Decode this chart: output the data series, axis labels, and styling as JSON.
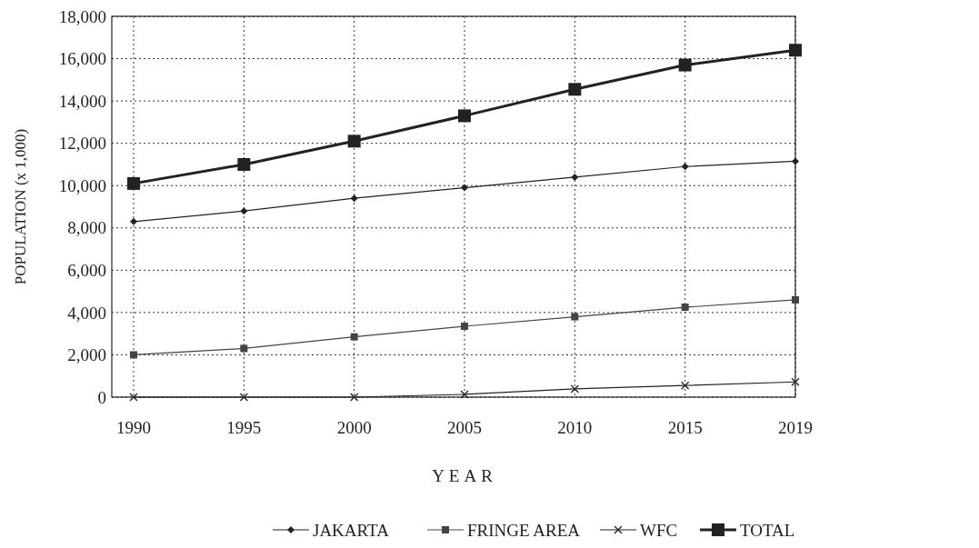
{
  "chart_data": {
    "type": "line",
    "xlabel": "YEAR",
    "ylabel": "POPULATION (x 1,000)",
    "categories": [
      "1990",
      "1995",
      "2000",
      "2005",
      "2010",
      "2015",
      "2019"
    ],
    "ylim": [
      0,
      18000
    ],
    "yticks": [
      {
        "value": 0,
        "label": "0"
      },
      {
        "value": 2000,
        "label": "2,000"
      },
      {
        "value": 4000,
        "label": "4,000"
      },
      {
        "value": 6000,
        "label": "6,000"
      },
      {
        "value": 8000,
        "label": "8,000"
      },
      {
        "value": 10000,
        "label": "10,000"
      },
      {
        "value": 12000,
        "label": "12,000"
      },
      {
        "value": 14000,
        "label": "14,000"
      },
      {
        "value": 16000,
        "label": "16,000"
      },
      {
        "value": 18000,
        "label": "18,000"
      }
    ],
    "grid": true,
    "legend": "bottom",
    "line_style": "solid",
    "series": [
      {
        "name": "JAKARTA",
        "color": "#222222",
        "marker": "diamond",
        "values": [
          8300,
          8800,
          9400,
          9900,
          10400,
          10900,
          11150
        ]
      },
      {
        "name": "FRINGE AREA",
        "color": "#444444",
        "marker": "square",
        "values": [
          2000,
          2300,
          2850,
          3350,
          3800,
          4250,
          4600
        ]
      },
      {
        "name": "WFC",
        "color": "#222222",
        "marker": "cross",
        "values": [
          0,
          0,
          0,
          130,
          390,
          550,
          720
        ]
      },
      {
        "name": "TOTAL",
        "color": "#222222",
        "marker": "square",
        "values": [
          10100,
          11000,
          12100,
          13300,
          14550,
          15700,
          16400
        ]
      }
    ]
  }
}
